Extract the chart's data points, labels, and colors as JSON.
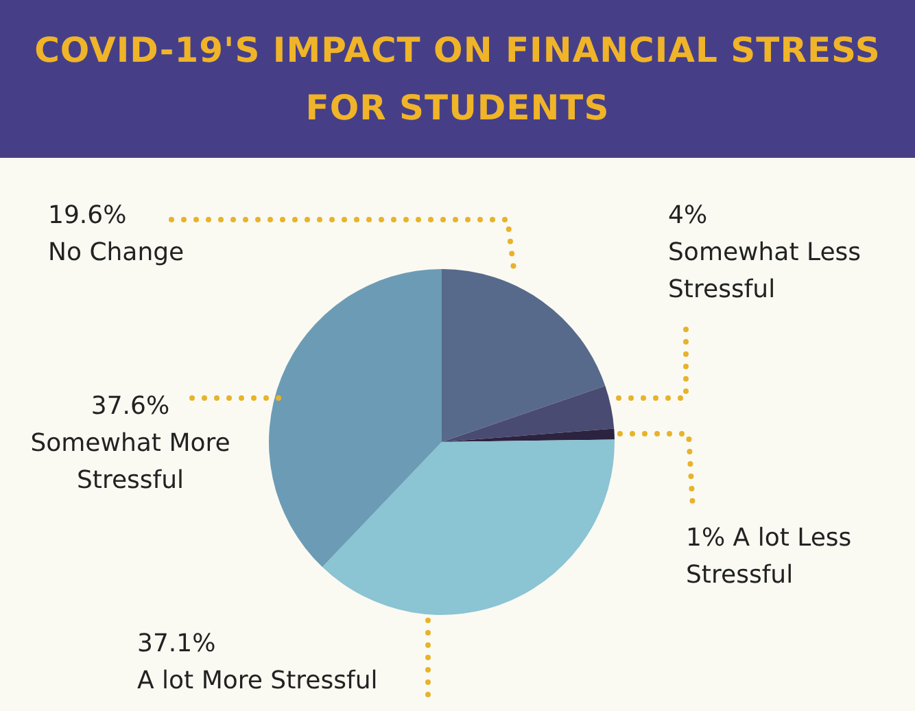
{
  "chart_data": {
    "type": "pie",
    "title": "COVID-19'S IMPACT ON FINANCIAL STRESS FOR STUDENTS",
    "categories": [
      "No Change",
      "Somewhat Less Stressful",
      "A lot Less Stressful",
      "A lot More Stressful",
      "Somewhat More Stressful"
    ],
    "values": [
      19.6,
      4,
      1,
      37.1,
      37.6
    ],
    "value_labels": [
      "19.6%",
      "4%",
      "1%",
      "37.1%",
      "37.6%"
    ],
    "colors": [
      "#576a8b",
      "#4a4b72",
      "#2c2340",
      "#8bc4d3",
      "#6c9cb5"
    ],
    "legend": false
  }
}
